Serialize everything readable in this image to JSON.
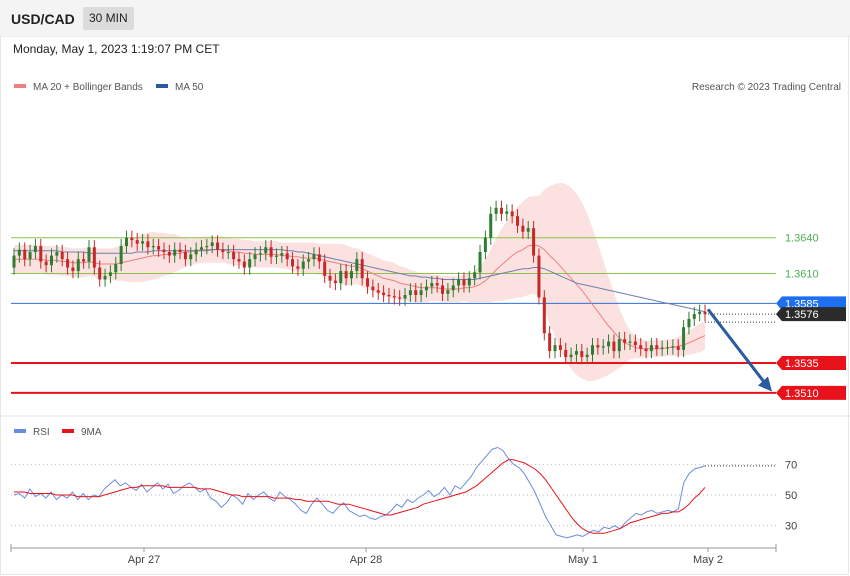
{
  "header": {
    "pair": "USD/CAD",
    "timeframe": "30 MIN",
    "datetime": "Monday, May 1, 2023 1:19:07 PM CET",
    "copyright": "Research © 2023 Trading Central"
  },
  "colors": {
    "resistance": "#8bc34a",
    "pivot": "#2f6fd6",
    "support": "#e8121b",
    "last": "#333333",
    "up": "#2e7d32",
    "down": "#c62828",
    "bb": "#fcdede",
    "ma20": "#f08080",
    "ma50": "#6f7fb0",
    "rsi": "#6b8be0",
    "rsi_ma": "#e8121b",
    "arrow": "#2a5aa0"
  },
  "chart_data": [
    {
      "type": "candlestick",
      "legend": [
        {
          "name": "MA 20 + Bollinger Bands",
          "color": "#f08080"
        },
        {
          "name": "MA 50",
          "color": "#2a5aa0"
        }
      ],
      "ylim": [
        1.3494,
        1.3757
      ],
      "x_ticks": [
        "Apr 27",
        "Apr 28",
        "May 1",
        "May 2"
      ],
      "levels": [
        {
          "label": "1.3640",
          "value": 1.364,
          "kind": "resistance"
        },
        {
          "label": "1.3610",
          "value": 1.361,
          "kind": "resistance"
        },
        {
          "label": "1.3585",
          "value": 1.3585,
          "kind": "pivot"
        },
        {
          "label": "1.3576",
          "value": 1.3576,
          "kind": "last"
        },
        {
          "label": "1.3535",
          "value": 1.3535,
          "kind": "support"
        },
        {
          "label": "1.3510",
          "value": 1.351,
          "kind": "support"
        }
      ],
      "close": [
        1.3625,
        1.363,
        1.3622,
        1.3628,
        1.3633,
        1.362,
        1.3617,
        1.3625,
        1.3628,
        1.3622,
        1.3615,
        1.3612,
        1.3622,
        1.362,
        1.3632,
        1.3615,
        1.3605,
        1.3608,
        1.3611,
        1.3618,
        1.3633,
        1.364,
        1.3638,
        1.3635,
        1.3637,
        1.3632,
        1.3633,
        1.363,
        1.3628,
        1.3625,
        1.363,
        1.3628,
        1.3622,
        1.3626,
        1.363,
        1.3632,
        1.3633,
        1.3636,
        1.363,
        1.3628,
        1.3628,
        1.3622,
        1.362,
        1.3615,
        1.3622,
        1.3626,
        1.3627,
        1.3632,
        1.3624,
        1.3625,
        1.3627,
        1.3622,
        1.3616,
        1.3614,
        1.362,
        1.3622,
        1.3626,
        1.362,
        1.3608,
        1.3604,
        1.3602,
        1.3612,
        1.3606,
        1.3612,
        1.3622,
        1.3606,
        1.3599,
        1.3596,
        1.3594,
        1.3592,
        1.3591,
        1.359,
        1.3589,
        1.3592,
        1.3596,
        1.3592,
        1.3596,
        1.3599,
        1.3602,
        1.36,
        1.3593,
        1.3596,
        1.36,
        1.3605,
        1.36,
        1.3606,
        1.3611,
        1.3628,
        1.364,
        1.366,
        1.3665,
        1.366,
        1.3662,
        1.3658,
        1.365,
        1.3645,
        1.3648,
        1.3625,
        1.359,
        1.356,
        1.3545,
        1.355,
        1.3546,
        1.354,
        1.3542,
        1.3545,
        1.354,
        1.3542,
        1.355,
        1.3548,
        1.3549,
        1.3553,
        1.3545,
        1.3555,
        1.3552,
        1.3553,
        1.355,
        1.3547,
        1.3545,
        1.355,
        1.3547,
        1.3548,
        1.3548,
        1.3549,
        1.3546,
        1.3565,
        1.3572,
        1.3576,
        1.3578,
        1.3576
      ],
      "open": [
        1.3615,
        1.3625,
        1.363,
        1.3622,
        1.3628,
        1.3633,
        1.362,
        1.3617,
        1.3625,
        1.3628,
        1.3622,
        1.3615,
        1.3612,
        1.3622,
        1.362,
        1.3632,
        1.3615,
        1.3605,
        1.3608,
        1.3611,
        1.3618,
        1.3633,
        1.364,
        1.3638,
        1.3635,
        1.3637,
        1.3632,
        1.3633,
        1.363,
        1.3628,
        1.3625,
        1.363,
        1.3628,
        1.3622,
        1.3626,
        1.363,
        1.3632,
        1.3633,
        1.3636,
        1.363,
        1.3628,
        1.3628,
        1.3622,
        1.362,
        1.3615,
        1.3622,
        1.3626,
        1.3627,
        1.3632,
        1.3624,
        1.3625,
        1.3627,
        1.3622,
        1.3616,
        1.3614,
        1.362,
        1.3622,
        1.3626,
        1.362,
        1.3608,
        1.3604,
        1.3602,
        1.3612,
        1.3606,
        1.3612,
        1.3622,
        1.3606,
        1.3599,
        1.3596,
        1.3594,
        1.3592,
        1.3591,
        1.359,
        1.3589,
        1.3592,
        1.3596,
        1.3592,
        1.3596,
        1.3599,
        1.3602,
        1.36,
        1.3593,
        1.3596,
        1.36,
        1.3605,
        1.36,
        1.3606,
        1.3611,
        1.3628,
        1.364,
        1.366,
        1.3665,
        1.366,
        1.3662,
        1.3658,
        1.365,
        1.3645,
        1.3648,
        1.3625,
        1.359,
        1.356,
        1.3545,
        1.355,
        1.3546,
        1.354,
        1.3542,
        1.3545,
        1.354,
        1.3542,
        1.355,
        1.3548,
        1.3549,
        1.3553,
        1.3545,
        1.3555,
        1.3552,
        1.3553,
        1.355,
        1.3547,
        1.3545,
        1.355,
        1.3547,
        1.3548,
        1.3548,
        1.3549,
        1.3546,
        1.3565,
        1.3572,
        1.3576,
        1.3578
      ],
      "ma20": [
        1.3622,
        1.3622,
        1.3622,
        1.3622,
        1.3622,
        1.3622,
        1.3621,
        1.3621,
        1.3621,
        1.362,
        1.362,
        1.3619,
        1.3619,
        1.3619,
        1.362,
        1.3619,
        1.3618,
        1.3618,
        1.3618,
        1.3618,
        1.3619,
        1.362,
        1.3621,
        1.3622,
        1.3623,
        1.3624,
        1.3625,
        1.3625,
        1.3626,
        1.3626,
        1.3627,
        1.3627,
        1.3628,
        1.3628,
        1.3629,
        1.363,
        1.363,
        1.363,
        1.363,
        1.363,
        1.3629,
        1.3628,
        1.3628,
        1.3627,
        1.3627,
        1.3626,
        1.3626,
        1.3626,
        1.3626,
        1.3626,
        1.3625,
        1.3625,
        1.3624,
        1.3624,
        1.3623,
        1.3623,
        1.3623,
        1.3622,
        1.3621,
        1.362,
        1.3619,
        1.3618,
        1.3617,
        1.3616,
        1.3616,
        1.3614,
        1.3612,
        1.361,
        1.3608,
        1.3606,
        1.3605,
        1.3604,
        1.3602,
        1.3601,
        1.36,
        1.3599,
        1.3598,
        1.3598,
        1.3598,
        1.3598,
        1.3597,
        1.3597,
        1.3597,
        1.3597,
        1.3598,
        1.3598,
        1.3599,
        1.3601,
        1.3604,
        1.3608,
        1.3613,
        1.3617,
        1.3621,
        1.3625,
        1.3628,
        1.363,
        1.3633,
        1.3634,
        1.3633,
        1.363,
        1.3625,
        1.3621,
        1.3616,
        1.3611,
        1.3606,
        1.3601,
        1.3596,
        1.359,
        1.3584,
        1.3578,
        1.3572,
        1.3566,
        1.3561,
        1.3556,
        1.3552,
        1.355,
        1.3548,
        1.3547,
        1.3547,
        1.3547,
        1.3547,
        1.3547,
        1.3548,
        1.3548,
        1.3549,
        1.355,
        1.3552,
        1.3554,
        1.3556,
        1.3558
      ],
      "bb_width": [
        0.0012,
        0.0012,
        0.0012,
        0.0012,
        0.0012,
        0.0012,
        0.0012,
        0.0012,
        0.0012,
        0.0012,
        0.0012,
        0.0012,
        0.0012,
        0.0012,
        0.0012,
        0.0012,
        0.0013,
        0.0013,
        0.0013,
        0.0014,
        0.0015,
        0.0017,
        0.0018,
        0.0019,
        0.002,
        0.002,
        0.002,
        0.0019,
        0.0018,
        0.0017,
        0.0016,
        0.0014,
        0.0012,
        0.0011,
        0.0011,
        0.0011,
        0.0011,
        0.0011,
        0.0011,
        0.0011,
        0.0011,
        0.0011,
        0.0011,
        0.0011,
        0.0011,
        0.0011,
        0.0011,
        0.0011,
        0.0011,
        0.0011,
        0.0011,
        0.0011,
        0.0012,
        0.0012,
        0.0013,
        0.0013,
        0.0013,
        0.0013,
        0.0014,
        0.0015,
        0.0016,
        0.0017,
        0.0017,
        0.0016,
        0.0015,
        0.0015,
        0.0015,
        0.0015,
        0.0015,
        0.0015,
        0.0015,
        0.0015,
        0.0014,
        0.0014,
        0.0013,
        0.0013,
        0.0012,
        0.0012,
        0.0011,
        0.0011,
        0.0011,
        0.0011,
        0.0011,
        0.0011,
        0.0011,
        0.0012,
        0.0013,
        0.0015,
        0.0018,
        0.0022,
        0.0026,
        0.003,
        0.0033,
        0.0036,
        0.0038,
        0.004,
        0.0041,
        0.0041,
        0.0042,
        0.005,
        0.0058,
        0.0064,
        0.007,
        0.0074,
        0.0076,
        0.0076,
        0.0074,
        0.007,
        0.0064,
        0.0057,
        0.0049,
        0.0041,
        0.0033,
        0.0025,
        0.0018,
        0.0012,
        0.0009,
        0.0008,
        0.0007,
        0.0007,
        0.0007,
        0.0007,
        0.0007,
        0.0007,
        0.0008,
        0.0009,
        0.001,
        0.0011,
        0.0012,
        0.0012
      ],
      "ma50": [
        1.3629,
        1.3629,
        1.3629,
        1.3629,
        1.3629,
        1.3629,
        1.3629,
        1.3629,
        1.3629,
        1.3628,
        1.3628,
        1.3628,
        1.3628,
        1.3628,
        1.3627,
        1.3627,
        1.3627,
        1.3627,
        1.3627,
        1.3627,
        1.3627,
        1.3627,
        1.3627,
        1.3628,
        1.3628,
        1.3628,
        1.3629,
        1.3629,
        1.3629,
        1.3629,
        1.3629,
        1.3629,
        1.3629,
        1.3629,
        1.3629,
        1.3629,
        1.3629,
        1.363,
        1.363,
        1.363,
        1.363,
        1.363,
        1.363,
        1.363,
        1.363,
        1.363,
        1.363,
        1.363,
        1.363,
        1.363,
        1.363,
        1.3629,
        1.3629,
        1.3628,
        1.3628,
        1.3627,
        1.3626,
        1.3625,
        1.3624,
        1.3623,
        1.3622,
        1.3621,
        1.362,
        1.3619,
        1.3618,
        1.3617,
        1.3616,
        1.3615,
        1.3614,
        1.3613,
        1.3612,
        1.3611,
        1.361,
        1.3609,
        1.3608,
        1.3608,
        1.3607,
        1.3607,
        1.3606,
        1.3606,
        1.3605,
        1.3605,
        1.3605,
        1.3605,
        1.3605,
        1.3605,
        1.3605,
        1.3606,
        1.3607,
        1.3608,
        1.3609,
        1.361,
        1.3611,
        1.3612,
        1.3613,
        1.3614,
        1.3614,
        1.3615,
        1.3615,
        1.3614,
        1.3612,
        1.361,
        1.3608,
        1.3606,
        1.3604,
        1.3602,
        1.3601,
        1.36,
        1.3599,
        1.3598,
        1.3597,
        1.3596,
        1.3595,
        1.3594,
        1.3593,
        1.3592,
        1.3591,
        1.359,
        1.3589,
        1.3588,
        1.3587,
        1.3586,
        1.3585,
        1.3584,
        1.3583,
        1.3582,
        1.3581,
        1.358,
        1.3579,
        1.3578
      ]
    },
    {
      "type": "line",
      "legend": [
        {
          "name": "RSI",
          "color": "#6b8be0"
        },
        {
          "name": "9MA",
          "color": "#e8121b"
        }
      ],
      "ylim": [
        20,
        82
      ],
      "y_ticks": [
        70,
        50,
        30
      ],
      "series": [
        {
          "name": "RSI",
          "values": [
            50,
            51,
            48,
            54,
            49,
            51,
            48,
            52,
            47,
            50,
            48,
            52,
            47,
            51,
            47,
            50,
            49,
            54,
            57,
            60,
            56,
            58,
            55,
            53,
            57,
            52,
            55,
            58,
            54,
            57,
            51,
            53,
            56,
            58,
            55,
            52,
            54,
            48,
            46,
            42,
            45,
            50,
            48,
            44,
            51,
            47,
            50,
            52,
            48,
            46,
            52,
            49,
            47,
            44,
            40,
            38,
            44,
            48,
            44,
            40,
            38,
            42,
            45,
            40,
            38,
            36,
            37,
            35,
            34,
            36,
            37,
            40,
            44,
            42,
            47,
            45,
            48,
            50,
            53,
            49,
            51,
            55,
            50,
            56,
            54,
            58,
            62,
            68,
            72,
            76,
            80,
            81,
            79,
            74,
            70,
            68,
            64,
            58,
            52,
            44,
            36,
            30,
            24,
            23,
            22,
            23,
            24,
            23,
            25,
            27,
            26,
            29,
            28,
            30,
            28,
            32,
            35,
            38,
            37,
            39,
            40,
            38,
            39,
            40,
            39,
            41,
            58,
            64,
            67,
            68,
            69
          ]
        },
        {
          "name": "9MA",
          "values": [
            52,
            52,
            52,
            51,
            51,
            51,
            51,
            51,
            50,
            50,
            50,
            50,
            49,
            49,
            49,
            49,
            49,
            50,
            51,
            52,
            53,
            54,
            55,
            55,
            56,
            56,
            56,
            56,
            56,
            55,
            55,
            55,
            55,
            55,
            55,
            54,
            54,
            54,
            53,
            52,
            51,
            50,
            50,
            49,
            49,
            49,
            49,
            49,
            49,
            48,
            48,
            48,
            48,
            47,
            47,
            46,
            46,
            46,
            46,
            46,
            45,
            44,
            44,
            44,
            43,
            42,
            41,
            40,
            39,
            38,
            37,
            37,
            38,
            39,
            40,
            41,
            42,
            44,
            45,
            46,
            47,
            48,
            49,
            50,
            51,
            52,
            54,
            56,
            59,
            62,
            65,
            68,
            71,
            73,
            73,
            72,
            71,
            69,
            67,
            64,
            60,
            55,
            50,
            45,
            40,
            35,
            31,
            28,
            26,
            25,
            25,
            25,
            26,
            27,
            28,
            30,
            32,
            33,
            34,
            35,
            36,
            37,
            38,
            38,
            39,
            39,
            41,
            44,
            48,
            51,
            55
          ]
        }
      ]
    }
  ]
}
